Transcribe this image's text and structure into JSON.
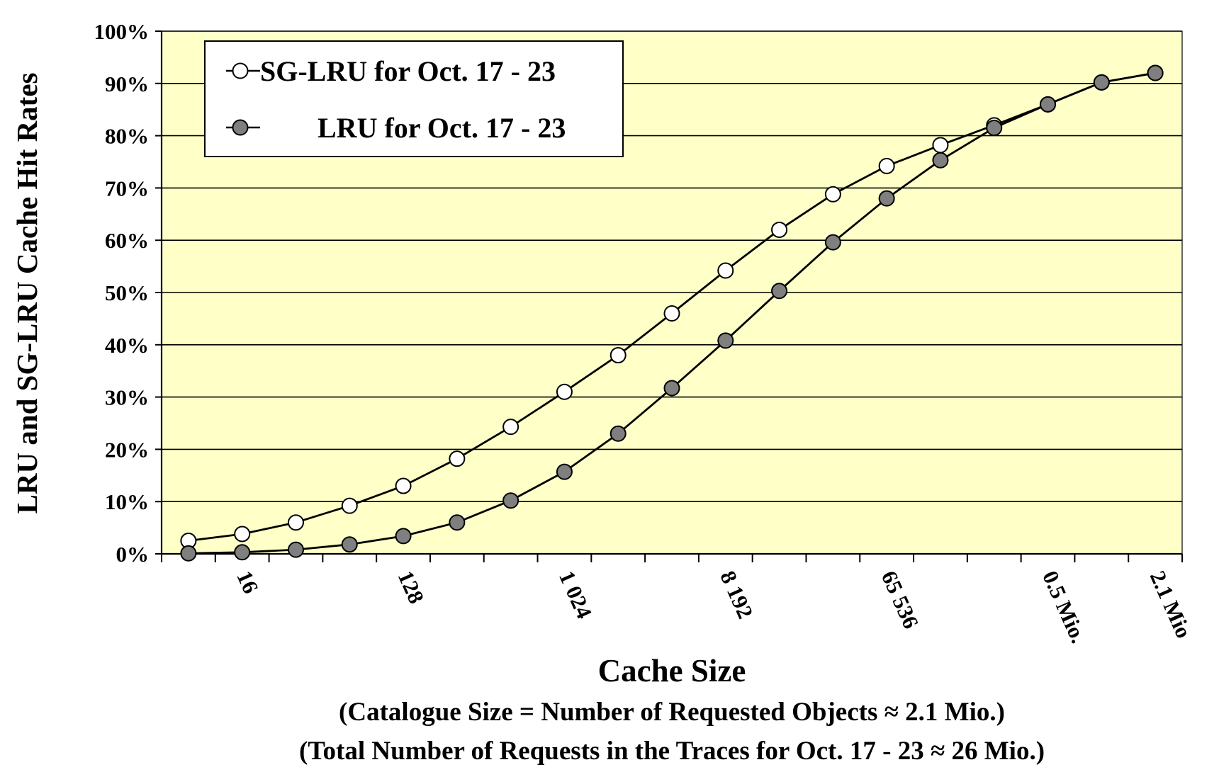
{
  "chart_data": {
    "type": "line",
    "title": "",
    "xlabel": "Cache Size",
    "xlabel_notes": [
      "(Catalogue Size = Number of Requested Objects ≈ 2.1 Mio.)",
      "(Total Number of Requests in the Traces for Oct. 17 - 23 ≈ 26 Mio.)"
    ],
    "ylabel": "LRU and SG-LRU Cache Hit Rates",
    "x_scale": "log2",
    "x_points": [
      8,
      16,
      32,
      64,
      128,
      256,
      512,
      1024,
      2048,
      4096,
      8192,
      16384,
      32768,
      65536,
      131072,
      262144,
      524288,
      1048576,
      2097152
    ],
    "x_tick_values": [
      16,
      128,
      1024,
      8192,
      65536,
      524288,
      2097152
    ],
    "x_tick_labels": [
      "16",
      "128",
      "1 024",
      "8 192",
      "65 536",
      "0.5 Mio.",
      "2.1 Mio"
    ],
    "ylim": [
      0,
      100
    ],
    "y_tick_labels": [
      "0%",
      "10%",
      "20%",
      "30%",
      "40%",
      "50%",
      "60%",
      "70%",
      "80%",
      "90%",
      "100%"
    ],
    "grid": "horizontal",
    "legend_position": "top-left",
    "background_color": "#ffffc8",
    "series": [
      {
        "name": "SG-LRU for Oct. 17 - 23",
        "marker": "open-circle",
        "marker_fill": "#ffffff",
        "values": [
          2.5,
          3.8,
          6.0,
          9.2,
          13.0,
          18.2,
          24.3,
          31.0,
          38.0,
          46.0,
          54.2,
          62.0,
          68.8,
          74.2,
          78.2,
          82.0,
          86.0,
          90.2,
          92.0
        ]
      },
      {
        "name": "LRU for Oct. 17 - 23",
        "marker": "filled-circle",
        "marker_fill": "#7f7f7f",
        "values": [
          0.1,
          0.3,
          0.8,
          1.8,
          3.4,
          6.0,
          10.2,
          15.7,
          23.0,
          31.7,
          40.8,
          50.3,
          59.6,
          68.0,
          75.3,
          81.5,
          86.0,
          90.2,
          92.0
        ]
      }
    ]
  }
}
